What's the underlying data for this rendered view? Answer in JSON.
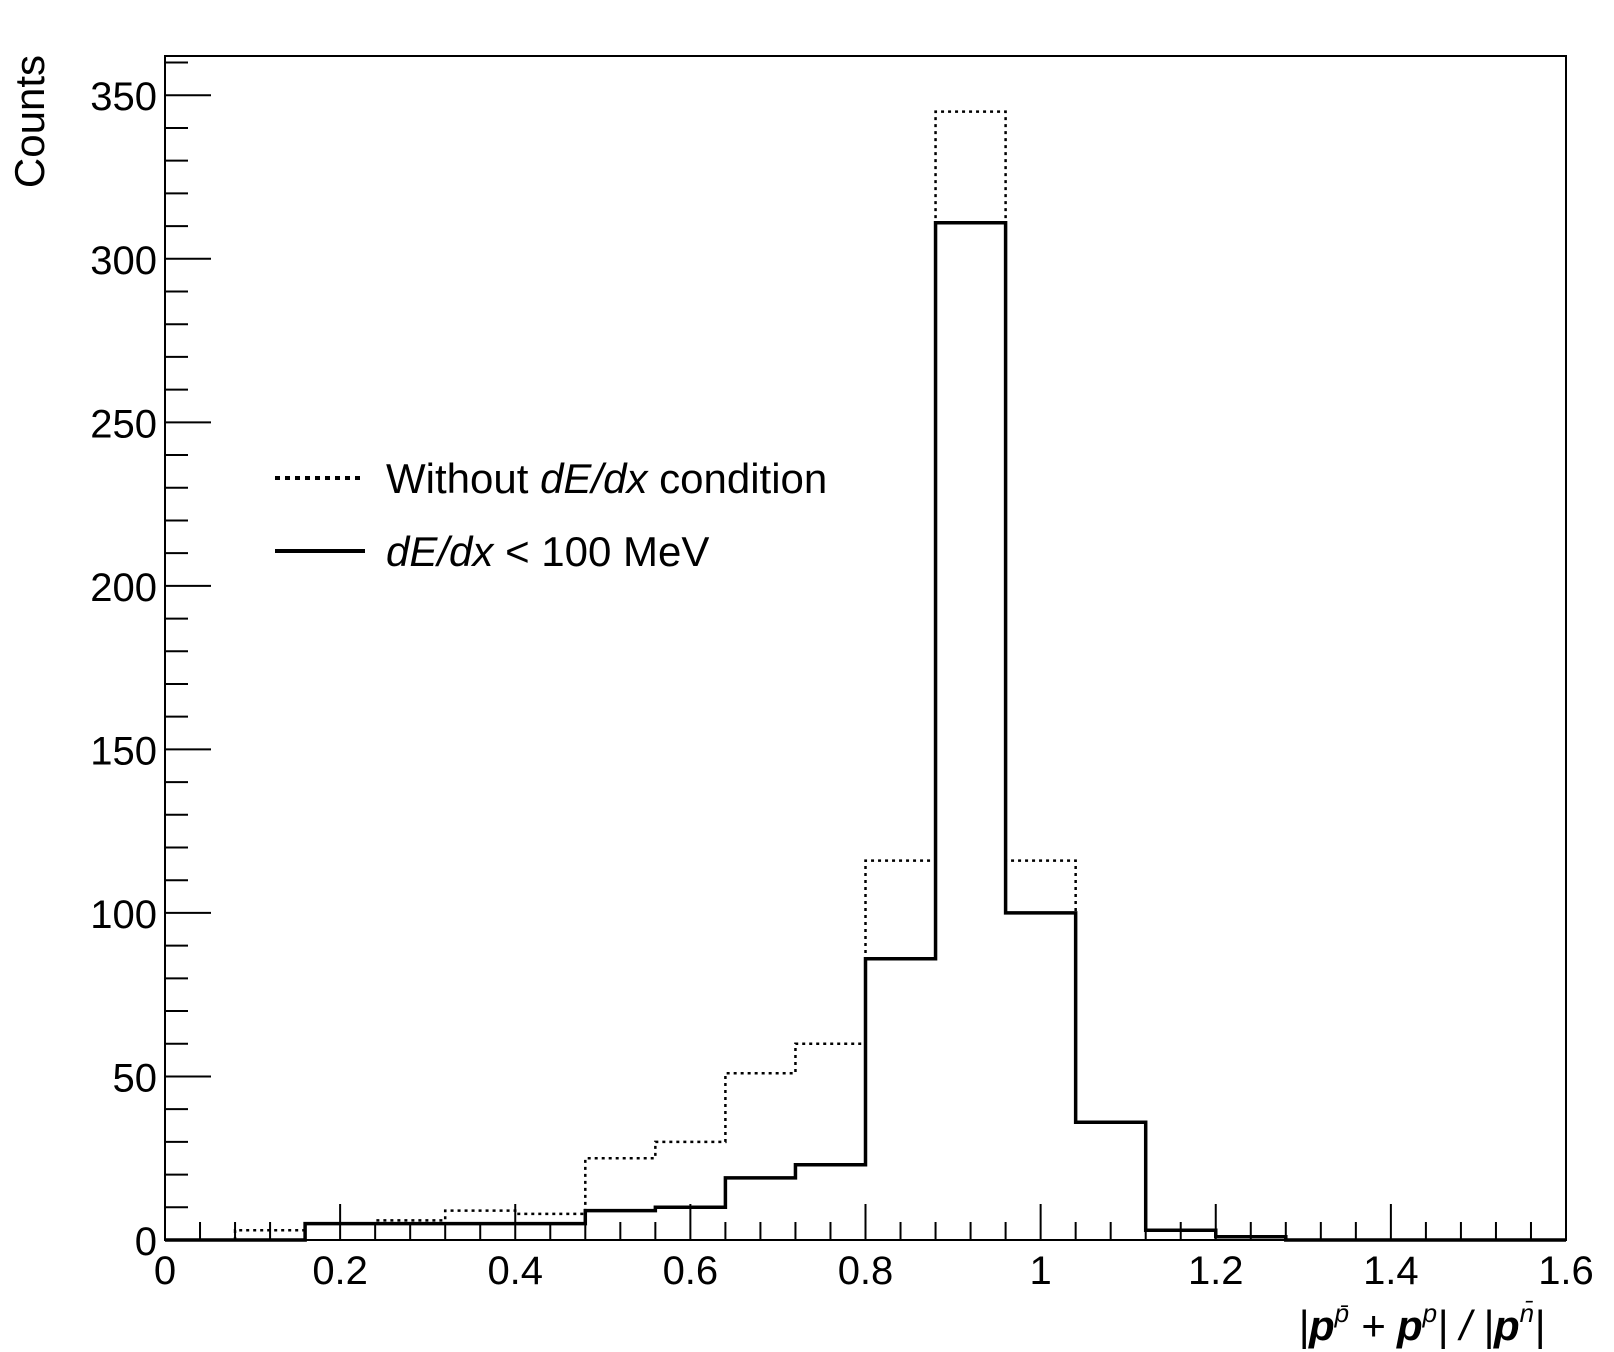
{
  "chart_data": {
    "type": "histogram",
    "xlabel": {
      "pre": "|",
      "p1": "p",
      "sup1": "p̄",
      "mid": " + ",
      "p2": "p",
      "sup2": "p",
      "post": "| / |",
      "p3": "p",
      "sup3": "n̄",
      "end": "|"
    },
    "ylabel": "Counts",
    "xlim": [
      0,
      1.6
    ],
    "ylim": [
      0,
      362
    ],
    "grid": false,
    "legend_position": "left-middle",
    "x_tick_labels": [
      "0",
      "0.2",
      "0.4",
      "0.6",
      "0.8",
      "1",
      "1.2",
      "1.4",
      "1.6"
    ],
    "y_tick_labels": [
      "0",
      "50",
      "100",
      "150",
      "200",
      "250",
      "300",
      "350"
    ],
    "bin_edges": [
      0,
      0.08,
      0.16,
      0.24,
      0.32,
      0.4,
      0.48,
      0.56,
      0.64,
      0.72,
      0.8,
      0.88,
      0.96,
      1.04,
      1.12,
      1.2,
      1.28,
      1.36,
      1.44,
      1.52,
      1.6
    ],
    "series": [
      {
        "legend_pre": "Without ",
        "legend_italic": "dE/dx",
        "legend_post": " condition",
        "style": "dotted",
        "values": [
          0,
          3,
          5,
          6,
          9,
          8,
          25,
          30,
          51,
          60,
          116,
          345,
          116,
          36,
          3,
          1,
          0,
          0,
          0,
          0
        ]
      },
      {
        "legend_pre": "",
        "legend_italic": "dE/dx",
        "legend_post": " < 100 MeV",
        "style": "solid",
        "values": [
          0,
          0,
          5,
          5,
          5,
          5,
          9,
          10,
          19,
          23,
          86,
          311,
          100,
          36,
          3,
          1,
          0,
          0,
          0,
          0
        ]
      }
    ]
  }
}
